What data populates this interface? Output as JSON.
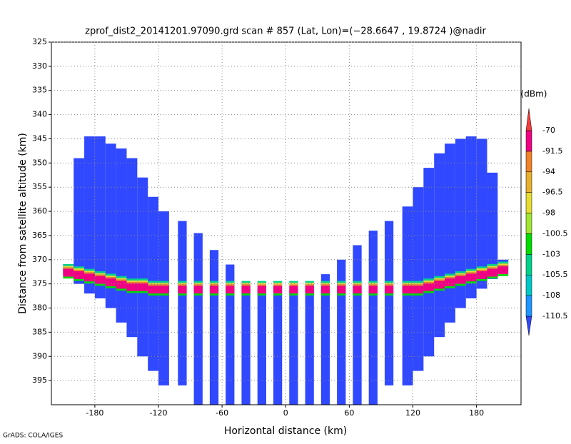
{
  "chart_data": {
    "type": "swath",
    "title": "zprof_dist2_20141201.97090.grd  scan # 857  (Lat, Lon)=(−28.6647 , 19.8724 )@nadir",
    "x_label": "Horizontal distance (km)",
    "y_label": "Distance from satellite altitude (km)",
    "xlim": [
      -221,
      222
    ],
    "ylim": [
      325,
      400
    ],
    "y_inverted": true,
    "grid": true,
    "xticks": [
      -180,
      -120,
      -60,
      0,
      60,
      120,
      180
    ],
    "yticks": [
      325,
      330,
      335,
      340,
      345,
      350,
      355,
      360,
      365,
      370,
      375,
      380,
      385,
      390,
      395
    ],
    "blocks": [
      {
        "x": [
          -205,
          -195,
          -185,
          -175,
          -165,
          -155,
          -145,
          -135,
          -125,
          -115
        ],
        "top": [
          371,
          349,
          344.5,
          344.5,
          346,
          347,
          349,
          353,
          357,
          360
        ],
        "bottom": [
          373,
          375,
          377,
          378,
          380,
          383,
          386,
          390,
          393,
          396
        ],
        "surface": [
          372.5,
          373,
          373.5,
          374,
          374.5,
          375,
          375.5,
          375.5,
          376,
          376
        ]
      },
      {
        "x": [
          115,
          125,
          135,
          145,
          155,
          165,
          175,
          185,
          195,
          205
        ],
        "top": [
          359,
          355,
          351,
          348,
          346,
          345,
          344.5,
          345,
          352,
          370
        ],
        "bottom": [
          396,
          393,
          390,
          386,
          383,
          380,
          378,
          376,
          374,
          372
        ],
        "surface": [
          376,
          376,
          375.5,
          375,
          374.5,
          374,
          373.5,
          373,
          372.5,
          372
        ]
      }
    ],
    "beams": {
      "x": [
        -97.5,
        -82.5,
        -67.5,
        -52.5,
        -37.5,
        -22.5,
        -7.5,
        7.5,
        22.5,
        37.5,
        52.5,
        67.5,
        82.5,
        97.5
      ],
      "top": [
        362,
        364.5,
        368,
        371,
        374.5,
        376,
        377,
        376.5,
        375,
        373,
        370,
        367,
        364,
        362
      ],
      "bottom": [
        396,
        400,
        400,
        400,
        400,
        400,
        400,
        400,
        400,
        400,
        400,
        400,
        400,
        396
      ],
      "surface": [
        376,
        376,
        376,
        376,
        376,
        376,
        376,
        376,
        376,
        376,
        376,
        376,
        376,
        376
      ]
    },
    "colorbar": {
      "title": "(dBm)",
      "levels": [
        -110.5,
        -108,
        -105.5,
        -103,
        -100.5,
        -98,
        -96.5,
        -94,
        -91.5,
        -70
      ],
      "colors": [
        "#3048ff",
        "#1e96ff",
        "#00c8c8",
        "#00d28c",
        "#00dc00",
        "#a0e632",
        "#e6dc32",
        "#e6af2d",
        "#f08228",
        "#f00082",
        "#fa3c3c"
      ]
    }
  },
  "footer": "GrADS: COLA/IGES"
}
